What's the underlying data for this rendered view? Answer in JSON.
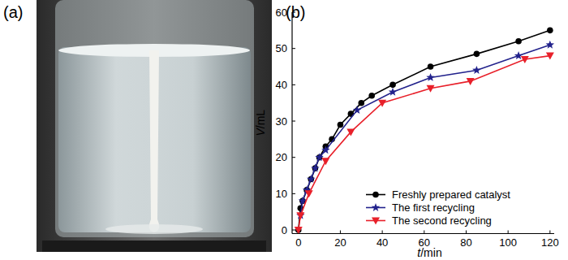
{
  "photo": {
    "label": "(a)"
  },
  "chart_data": {
    "type": "line",
    "title": "(b)",
    "x_label": "t/min",
    "y_label": "V/mL",
    "xlim": [
      -3,
      122
    ],
    "ylim": [
      -1,
      60
    ],
    "xticks": [
      0,
      20,
      40,
      60,
      80,
      100,
      120
    ],
    "yticks": [
      0,
      10,
      20,
      30,
      40,
      50,
      60
    ],
    "grid": false,
    "legend": "lower right",
    "series": [
      {
        "name": "Freshly prepared catalyst",
        "color": "#000000",
        "marker": "circle",
        "line_style": "solid",
        "x": [
          0,
          1,
          2,
          4,
          6,
          8,
          10,
          13,
          16,
          20,
          25,
          30,
          35,
          45,
          63,
          85,
          105,
          120
        ],
        "values": [
          0,
          6,
          8,
          11,
          14,
          17,
          20,
          23,
          25,
          29,
          32,
          35,
          37,
          40,
          45,
          48.5,
          52,
          55
        ]
      },
      {
        "name": "The first recycling",
        "color": "#22228c",
        "marker": "star",
        "line_style": "solid",
        "x": [
          1,
          2,
          4,
          6,
          8,
          10,
          13,
          28,
          45,
          63,
          85,
          105,
          120
        ],
        "values": [
          4,
          8,
          11,
          14,
          17,
          20,
          22,
          33,
          38,
          42,
          44,
          48,
          51
        ]
      },
      {
        "name": "The second recycling",
        "color": "#e8202a",
        "marker": "triangle-down",
        "line_style": "solid",
        "x": [
          0,
          1,
          5,
          13,
          25,
          40,
          63,
          82,
          108,
          120
        ],
        "values": [
          0,
          4,
          10,
          19,
          27,
          35,
          39,
          41,
          47,
          48
        ]
      }
    ]
  }
}
